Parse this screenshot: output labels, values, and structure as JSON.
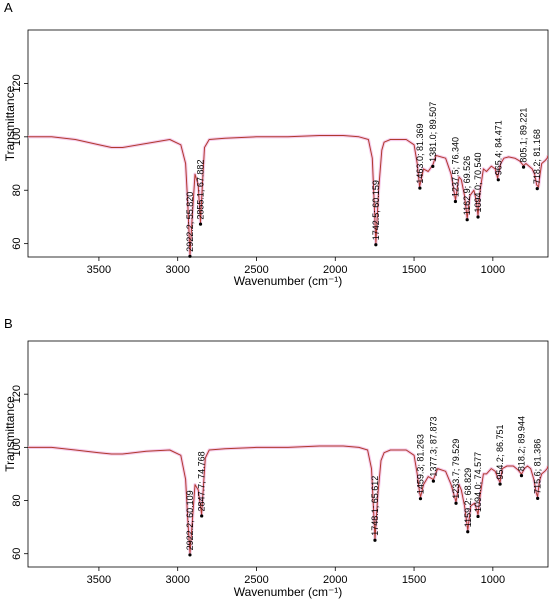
{
  "chart_data": [
    {
      "type": "line",
      "panel_label": "A",
      "xlabel": "Wavenumber (cm⁻¹)",
      "ylabel": "Transmittance",
      "xlim": [
        3950,
        650
      ],
      "ylim": [
        55,
        140
      ],
      "x_ticks": [
        3500,
        3000,
        2500,
        2000,
        1500,
        1000
      ],
      "y_ticks": [
        60,
        80,
        100,
        120
      ],
      "grid": false,
      "legend": "none",
      "line_color": "#b03a2e",
      "band_color": "#f2b8e4",
      "series": [
        {
          "x": [
            3950,
            3800,
            3650,
            3500,
            3420,
            3350,
            3200,
            3050,
            2980,
            2950,
            2935,
            2922,
            2910,
            2890,
            2870,
            2855,
            2845,
            2830,
            2800,
            2700,
            2500,
            2300,
            2100,
            1950,
            1850,
            1790,
            1765,
            1742,
            1725,
            1705,
            1690,
            1650,
            1600,
            1550,
            1500,
            1480,
            1465,
            1455,
            1440,
            1410,
            1381,
            1360,
            1300,
            1265,
            1237,
            1215,
            1200,
            1180,
            1163,
            1145,
            1120,
            1105,
            1094,
            1080,
            1060,
            1040,
            1010,
            985,
            970,
            950,
            930,
            900,
            860,
            830,
            805,
            790,
            770,
            750,
            735,
            722,
            710,
            700,
            690,
            670,
            655,
            650
          ],
          "y": [
            100,
            100,
            99,
            97,
            96,
            96,
            97.5,
            99,
            97,
            90,
            74,
            55.8,
            68,
            86,
            82,
            67.9,
            80,
            96,
            99,
            99.5,
            100,
            100,
            100.5,
            100.5,
            100,
            99,
            92,
            60.2,
            80,
            95,
            98,
            99,
            99,
            99,
            97,
            90,
            81.4,
            84,
            88,
            87,
            89.5,
            93,
            92,
            86,
            76.3,
            85,
            84,
            78,
            69.5,
            78,
            80,
            76,
            70.5,
            80,
            88,
            87,
            89,
            88,
            84.5,
            90,
            92,
            92.5,
            92,
            91,
            89.2,
            90,
            89,
            88,
            86,
            82,
            81.2,
            86,
            90,
            91,
            92,
            93
          ]
        }
      ],
      "peaks": [
        {
          "x": 2922.2,
          "y": 55.82,
          "label": "2922.2; 55.820"
        },
        {
          "x": 2855.1,
          "y": 67.882,
          "label": "2855.1; 67.882"
        },
        {
          "x": 1742.5,
          "y": 60.159,
          "label": "1742.5; 60.159"
        },
        {
          "x": 1463.0,
          "y": 81.369,
          "label": "1463.0; 81.369"
        },
        {
          "x": 1381.0,
          "y": 89.507,
          "label": "1381.0; 89.507"
        },
        {
          "x": 1237.5,
          "y": 76.34,
          "label": "1237.5; 76.340"
        },
        {
          "x": 1162.9,
          "y": 69.526,
          "label": "1162.9; 69.526"
        },
        {
          "x": 1094.0,
          "y": 70.54,
          "label": "1094.0; 70.540"
        },
        {
          "x": 965.4,
          "y": 84.471,
          "label": "965.4; 84.471"
        },
        {
          "x": 805.1,
          "y": 89.221,
          "label": "805.1; 89.221"
        },
        {
          "x": 718.2,
          "y": 81.168,
          "label": "718.2; 81.168"
        }
      ]
    },
    {
      "type": "line",
      "panel_label": "B",
      "xlabel": "Wavenumber (cm⁻¹)",
      "ylabel": "Transmittance",
      "xlim": [
        3950,
        650
      ],
      "ylim": [
        55,
        140
      ],
      "x_ticks": [
        3500,
        3000,
        2500,
        2000,
        1500,
        1000
      ],
      "y_ticks": [
        60,
        80,
        100,
        120
      ],
      "grid": false,
      "legend": "none",
      "line_color": "#b03a2e",
      "band_color": "#f2b8e4",
      "series": [
        {
          "x": [
            3950,
            3800,
            3650,
            3500,
            3420,
            3350,
            3200,
            3050,
            2980,
            2950,
            2935,
            2922,
            2910,
            2890,
            2870,
            2848,
            2838,
            2825,
            2800,
            2700,
            2500,
            2300,
            2100,
            1950,
            1850,
            1795,
            1770,
            1748,
            1730,
            1710,
            1690,
            1650,
            1600,
            1550,
            1500,
            1480,
            1465,
            1459,
            1440,
            1410,
            1377,
            1350,
            1300,
            1265,
            1234,
            1215,
            1200,
            1180,
            1159,
            1140,
            1115,
            1100,
            1094,
            1080,
            1060,
            1040,
            1010,
            985,
            965,
            954,
            940,
            910,
            870,
            840,
            818,
            800,
            780,
            760,
            740,
            725,
            716,
            705,
            690,
            670,
            655,
            650
          ],
          "y": [
            100,
            100,
            99,
            98,
            97.5,
            97.5,
            98.5,
            99,
            97,
            88,
            72,
            60.1,
            70,
            86,
            84,
            74.8,
            84,
            96,
            99,
            99.5,
            100,
            100,
            100.5,
            100.5,
            100,
            99,
            92,
            65.6,
            82,
            95,
            98,
            99,
            99,
            99,
            97,
            90,
            83,
            81.3,
            86,
            89,
            87.9,
            92,
            91,
            86,
            79.5,
            86,
            84,
            78,
            68.8,
            78,
            79,
            76,
            74.6,
            82,
            90,
            90,
            92,
            91,
            88,
            86.8,
            92,
            93,
            93,
            91.5,
            89.9,
            92,
            93,
            92,
            88,
            83,
            81.4,
            87,
            90,
            91,
            92,
            93
          ]
        }
      ],
      "peaks": [
        {
          "x": 2922.2,
          "y": 60.109,
          "label": "2922.2; 60.109"
        },
        {
          "x": 2847.7,
          "y": 74.768,
          "label": "2847.7; 74.768"
        },
        {
          "x": 1748.1,
          "y": 65.612,
          "label": "1748.1; 65.612"
        },
        {
          "x": 1459.3,
          "y": 81.263,
          "label": "1459.3; 81.263"
        },
        {
          "x": 1377.3,
          "y": 87.873,
          "label": "1377.3; 87.873"
        },
        {
          "x": 1233.7,
          "y": 79.529,
          "label": "1233.7; 79.529"
        },
        {
          "x": 1159.2,
          "y": 68.829,
          "label": "1159.2; 68.829"
        },
        {
          "x": 1094.0,
          "y": 74.577,
          "label": "1094.0; 74.577"
        },
        {
          "x": 954.2,
          "y": 86.751,
          "label": "954.2; 86.751"
        },
        {
          "x": 818.2,
          "y": 89.944,
          "label": "818.2; 89.944"
        },
        {
          "x": 715.6,
          "y": 81.386,
          "label": "715.6; 81.386"
        }
      ]
    }
  ]
}
